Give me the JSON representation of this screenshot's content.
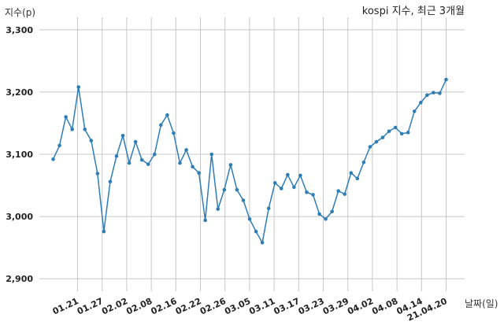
{
  "chart_data": {
    "type": "line",
    "title": "kospi 지수, 최근 3개월",
    "ylabel": "지수(p)",
    "xlabel": "날짜(일)",
    "ylim": [
      2880,
      3320
    ],
    "yticks": [
      2900,
      3000,
      3100,
      3200,
      3300
    ],
    "ytick_labels": [
      "2,900",
      "3,000",
      "3,100",
      "3,200",
      "3,300"
    ],
    "xtick_labels": [
      "01.21",
      "01.27",
      "02.02",
      "02.08",
      "02.16",
      "02.22",
      "02.26",
      "03.05",
      "03.11",
      "03.17",
      "03.23",
      "03.29",
      "04.02",
      "04.08",
      "04.14",
      "21.04.20"
    ],
    "grid": true,
    "line_color": "#2e7db5",
    "series": [
      {
        "values": [
          3092,
          3114,
          3160,
          3140,
          3208,
          3140,
          3122,
          3069,
          2976,
          3056,
          3097,
          3130,
          3086,
          3120,
          3091,
          3084,
          3100,
          3147,
          3163,
          3134,
          3086,
          3107,
          3080,
          3070,
          2994,
          3100,
          3012,
          3043,
          3083,
          3043,
          3026,
          2996,
          2976,
          2958,
          3013,
          3054,
          3045,
          3067,
          3047,
          3066,
          3039,
          3035,
          3004,
          2996,
          3008,
          3041,
          3036,
          3070,
          3061,
          3087,
          3112,
          3120,
          3127,
          3137,
          3143,
          3133,
          3135,
          3169,
          3183,
          3195,
          3199,
          3198,
          3220
        ]
      }
    ]
  }
}
